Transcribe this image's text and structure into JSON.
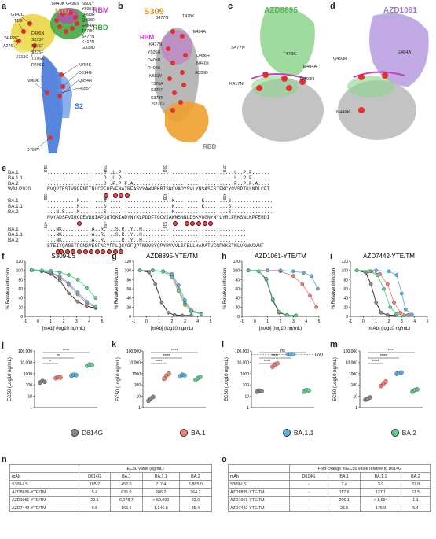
{
  "panels": {
    "a": "a",
    "b": "b",
    "c": "c",
    "d": "d",
    "e": "e",
    "f": "f",
    "g": "g",
    "h": "h",
    "i": "i",
    "j": "j",
    "k": "k",
    "l": "l",
    "m": "m",
    "n": "n",
    "o": "o"
  },
  "structure_labels": {
    "ntd": "NTD",
    "rbm": "RBM",
    "rbd": "RBD",
    "s2": "S2",
    "s309": "S309",
    "azd8895": "AZD8895",
    "azd1061": "AZD1061",
    "rbd_b": "RBD",
    "rbm_b": "RBM"
  },
  "colors": {
    "ntd": "#e8d23a",
    "rbm": "#c040c0",
    "rbd": "#3aa33a",
    "s2": "#3a6fd6",
    "s309": "#f0a030",
    "azd8895": "#8ed58e",
    "azd1061": "#b79be0",
    "d614g": "#888888",
    "ba1": "#f08070",
    "ba11": "#5bb5e8",
    "ba2": "#5fcf8f",
    "orange_band": "#f5b04a",
    "purple_band": "#a486d6",
    "green_band": "#66cc88"
  },
  "mutations_a": [
    "N440K",
    "G496S",
    "N501Y",
    "Y505H",
    "Q498R",
    "Q493R",
    "E484A",
    "T478K",
    "S477N",
    "K417N",
    "G339D",
    "N764K",
    "D614G",
    "Q954H",
    "H655Y",
    "N969K",
    "D796Y",
    "G142D",
    "T19I",
    "L24-P26˜",
    "A27S",
    "V213G",
    "D405N",
    "S373P",
    "S371F",
    "S375F",
    "T376A",
    "R408S"
  ],
  "mutations_b": [
    "T478K",
    "S477N",
    "E484A",
    "K417N",
    "Y505H",
    "Q498R",
    "D405N",
    "N440K",
    "R408S",
    "G339D",
    "N501Y",
    "T376A",
    "S375F",
    "S373P",
    "S371F"
  ],
  "mutations_c": [
    "S477N",
    "T478K",
    "E484A",
    "K417N",
    "Q493R"
  ],
  "mutations_d": [
    "Q493R",
    "E484A",
    "N440K"
  ],
  "sequence": {
    "rows": [
      {
        "numbers": [
          "319",
          "339",
          "359",
          "379"
        ],
        "lines": [
          {
            "name": "BA.1",
            "seq": "...................D..L.P......................................L..P.F......"
          },
          {
            "name": "BA.1.1",
            "seq": "...................D..L.P......................................L..P.F......"
          },
          {
            "name": "BA.2",
            "seq": "...................D..F.P.F.A..................................F..P.F.A...."
          },
          {
            "name": "WA1/2020",
            "seq": "RVQPTESIVRFPNITNLCPFGEVFNATRFASVYAWNRKRISNCVADYSVLYNSASFSTFKCYGVSPTKLNDLCFT"
          }
        ]
      },
      {
        "numbers": [
          "399",
          "419",
          "439",
          "459"
        ],
        "lines": [
          {
            "name": "BA.1",
            "seq": "..........N........S......................K.........K........S.............."
          },
          {
            "name": "BA.1.1",
            "seq": "..........N........S......................K.........K........S.............."
          },
          {
            "name": "BA.2",
            "seq": "...N.S....N........S......................K..................S.............."
          },
          {
            "name": "",
            "seq": "NVYADSFVIRGDEVRQIAPGQTGKIADYNYKLPDDFTGCVIAWNSNNLDSKVGGNYNYLYRLFRKSNLKPFERDI"
          }
        ]
      },
      {
        "numbers": [
          "479",
          "499",
          "519"
        ],
        "lines": [
          {
            "name": "BA.1",
            "seq": "...NK..........A..R....S.R..Y..H..................................."
          },
          {
            "name": "BA.1.1",
            "seq": "...NK..........A..R....S.R..Y..H..................................."
          },
          {
            "name": "BA.2",
            "seq": "...NK..........A..R......R..Y..H..................................."
          },
          {
            "name": "",
            "seq": "STEIYQAGSTPCNGVEGFNCYFPLQSYGFQPTNGVGYQPYRVVVLSFELLHAPATVCGPKKSTNLVKNKCVNF"
          }
        ]
      }
    ]
  },
  "chart_data": [
    {
      "id": "f",
      "type": "line",
      "title": "S309-LS",
      "xlabel": "[mAb] (log10 ng/mL)",
      "ylabel": "% Relative infection",
      "xlim": [
        -1,
        5
      ],
      "ylim": [
        0,
        120
      ],
      "xticks": [
        "-1",
        "0",
        "1",
        "2",
        "3",
        "4",
        "5"
      ],
      "yticks": [
        "0",
        "20",
        "40",
        "60",
        "80",
        "100",
        "120"
      ],
      "series": [
        {
          "name": "D614G",
          "color": "#888888",
          "x": [
            -0.5,
            0.3,
            1,
            1.7,
            2.4,
            3.1,
            3.8,
            4.5
          ],
          "y": [
            100,
            98,
            92,
            78,
            50,
            32,
            22,
            18
          ]
        },
        {
          "name": "BA.1",
          "color": "#f08070",
          "x": [
            -0.5,
            0.3,
            1,
            1.7,
            2.4,
            3.1,
            3.8,
            4.5
          ],
          "y": [
            102,
            98,
            95,
            85,
            68,
            48,
            28,
            20
          ]
        },
        {
          "name": "BA.1.1",
          "color": "#5bb5e8",
          "x": [
            -0.5,
            0.3,
            1,
            1.7,
            2.4,
            3.1,
            3.8,
            4.5
          ],
          "y": [
            100,
            99,
            96,
            88,
            72,
            52,
            32,
            22
          ]
        },
        {
          "name": "BA.2",
          "color": "#5fcf8f",
          "x": [
            -0.5,
            0.3,
            1,
            1.7,
            2.4,
            3.1,
            3.8,
            4.5
          ],
          "y": [
            102,
            100,
            99,
            96,
            90,
            80,
            62,
            40
          ]
        }
      ]
    },
    {
      "id": "g",
      "type": "line",
      "title": "AZD8895-YTE/TM",
      "xlabel": "[mAb] (log10 ng/mL)",
      "ylabel": "% Relative infection",
      "xlim": [
        -1,
        5
      ],
      "ylim": [
        0,
        120
      ],
      "xticks": [
        "-1",
        "0",
        "1",
        "2",
        "3",
        "4",
        "5"
      ],
      "yticks": [
        "0",
        "20",
        "40",
        "60",
        "80",
        "100",
        "120"
      ],
      "series": [
        {
          "name": "D614G",
          "color": "#888888",
          "x": [
            -0.5,
            0.2,
            0.7,
            1.2,
            1.7,
            2.2,
            2.8,
            3.5
          ],
          "y": [
            100,
            96,
            70,
            30,
            8,
            3,
            2,
            2
          ]
        },
        {
          "name": "BA.1",
          "color": "#f08070",
          "x": [
            -0.5,
            0.5,
            1.3,
            2,
            2.5,
            3,
            3.5,
            4.3
          ],
          "y": [
            100,
            100,
            98,
            90,
            60,
            30,
            12,
            5
          ]
        },
        {
          "name": "BA.1.1",
          "color": "#5bb5e8",
          "x": [
            -0.5,
            0.5,
            1.3,
            2,
            2.5,
            3,
            3.5,
            4.3
          ],
          "y": [
            100,
            100,
            98,
            92,
            68,
            35,
            14,
            6
          ]
        },
        {
          "name": "BA.2",
          "color": "#5fcf8f",
          "x": [
            -0.5,
            0.5,
            1.3,
            2,
            2.5,
            3,
            3.5,
            4.3
          ],
          "y": [
            100,
            100,
            97,
            85,
            55,
            25,
            10,
            5
          ]
        }
      ]
    },
    {
      "id": "h",
      "type": "line",
      "title": "AZD1061-YTE/TM",
      "xlabel": "[mAb] (log10 ng/mL)",
      "ylabel": "% Relative infection",
      "xlim": [
        -1,
        5
      ],
      "ylim": [
        0,
        120
      ],
      "xticks": [
        "-1",
        "0",
        "1",
        "2",
        "3",
        "4",
        "5"
      ],
      "yticks": [
        "0",
        "20",
        "40",
        "60",
        "80",
        "100",
        "120"
      ],
      "series": [
        {
          "name": "D614G",
          "color": "#888888",
          "x": [
            -0.5,
            0.3,
            0.9,
            1.4,
            1.9,
            2.5,
            3.2
          ],
          "y": [
            100,
            98,
            80,
            35,
            8,
            3,
            2
          ]
        },
        {
          "name": "BA.1",
          "color": "#f08070",
          "x": [
            -0.5,
            1,
            2,
            3,
            3.7,
            4.3,
            4.8
          ],
          "y": [
            100,
            100,
            98,
            88,
            70,
            45,
            20
          ]
        },
        {
          "name": "BA.1.1",
          "color": "#5bb5e8",
          "x": [
            -0.5,
            1,
            2,
            3,
            3.8,
            4.4,
            4.9
          ],
          "y": [
            100,
            100,
            100,
            98,
            95,
            88,
            60
          ]
        },
        {
          "name": "BA.2",
          "color": "#5fcf8f",
          "x": [
            -0.5,
            0.3,
            0.9,
            1.4,
            1.9,
            2.5,
            3.2
          ],
          "y": [
            100,
            98,
            82,
            38,
            10,
            3,
            2
          ]
        }
      ]
    },
    {
      "id": "i",
      "type": "line",
      "title": "AZD7442-YTE/TM",
      "xlabel": "[mAb] (log10 ng/mL)",
      "ylabel": "% Relative infection",
      "xlim": [
        -1,
        5
      ],
      "ylim": [
        0,
        120
      ],
      "xticks": [
        "-1",
        "0",
        "1",
        "2",
        "3",
        "4",
        "5"
      ],
      "yticks": [
        "0",
        "20",
        "40",
        "60",
        "80",
        "100",
        "120"
      ],
      "series": [
        {
          "name": "D614G",
          "color": "#888888",
          "x": [
            -0.5,
            0.2,
            0.6,
            1,
            1.4,
            1.9,
            2.5
          ],
          "y": [
            100,
            95,
            70,
            30,
            8,
            3,
            2
          ]
        },
        {
          "name": "BA.1",
          "color": "#f08070",
          "x": [
            -0.5,
            0.6,
            1.3,
            1.9,
            2.4,
            2.9,
            3.5
          ],
          "y": [
            100,
            98,
            92,
            70,
            30,
            8,
            3
          ]
        },
        {
          "name": "BA.1.1",
          "color": "#5bb5e8",
          "x": [
            -0.5,
            1,
            2,
            2.6,
            3,
            3.3,
            3.8
          ],
          "y": [
            100,
            100,
            98,
            90,
            50,
            15,
            4
          ]
        },
        {
          "name": "BA.2",
          "color": "#5fcf8f",
          "x": [
            -0.5,
            0.5,
            1.1,
            1.6,
            2.1,
            2.6,
            3.2
          ],
          "y": [
            100,
            98,
            90,
            60,
            20,
            5,
            2
          ]
        }
      ]
    },
    {
      "id": "j",
      "type": "scatter",
      "ylabel": "EC50 (Log10 ng/mL)",
      "yticks": [
        "1",
        "10",
        "100",
        "1000",
        "10,000",
        "100,000"
      ],
      "ylim_log": [
        0,
        5
      ],
      "categories": [
        "D614G",
        "BA.1",
        "BA.1.1",
        "BA.2"
      ],
      "values": [
        [
          2.2,
          2.35,
          2.27
        ],
        [
          2.6,
          2.68,
          2.65
        ],
        [
          2.82,
          2.9,
          2.87
        ],
        [
          3.7,
          3.8,
          3.76
        ]
      ],
      "significance": [
        {
          "from": 0,
          "to": 1,
          "label": "*"
        },
        {
          "from": 0,
          "to": 2,
          "label": "**"
        },
        {
          "from": 0,
          "to": 3,
          "label": "****"
        }
      ]
    },
    {
      "id": "k",
      "type": "scatter",
      "ylabel": "EC50 (Log10 ng/mL)",
      "yticks": [
        "1",
        "10",
        "100",
        "1000",
        "10,000",
        "100,000"
      ],
      "ylim_log": [
        0,
        5
      ],
      "categories": [
        "D614G",
        "BA.1",
        "BA.1.1",
        "BA.2"
      ],
      "values": [
        [
          0.6,
          0.8,
          0.95
        ],
        [
          2.55,
          2.85,
          3.0
        ],
        [
          2.75,
          2.9,
          2.85
        ],
        [
          2.45,
          2.6,
          2.7
        ]
      ],
      "significance": [
        {
          "from": 0,
          "to": 1,
          "label": "****"
        },
        {
          "from": 0,
          "to": 2,
          "label": "****"
        },
        {
          "from": 0,
          "to": 3,
          "label": "****"
        }
      ]
    },
    {
      "id": "l",
      "type": "scatter",
      "ylabel": "EC50 (Log10 ng/mL)",
      "yticks": [
        "1",
        "10",
        "100",
        "1000",
        "10,000",
        "100,000"
      ],
      "ylim_log": [
        0,
        5
      ],
      "categories": [
        "D614G",
        "BA.1",
        "BA.1.1",
        "BA.2"
      ],
      "values": [
        [
          1.4,
          1.5,
          1.45
        ],
        [
          3.6,
          3.8,
          3.9
        ],
        [
          4.7,
          4.7,
          4.7
        ],
        [
          1.4,
          1.55,
          1.5
        ]
      ],
      "lod_label": "LoD",
      "significance": [
        {
          "from": 0,
          "to": 1,
          "label": "****"
        },
        {
          "from": 0,
          "to": 2,
          "label": "****"
        },
        {
          "from": 0,
          "to": 3,
          "label": "ns"
        }
      ]
    },
    {
      "id": "m",
      "type": "scatter",
      "ylabel": "EC50 (Log10 ng/mL)",
      "yticks": [
        "1",
        "10",
        "100",
        "1000",
        "10,000",
        "100,000"
      ],
      "ylim_log": [
        0,
        5
      ],
      "categories": [
        "D614G",
        "BA.1",
        "BA.1.1",
        "BA.2"
      ],
      "values": [
        [
          0.7,
          0.8,
          0.9
        ],
        [
          1.9,
          2.1,
          2.3
        ],
        [
          3.0,
          3.05,
          3.1
        ],
        [
          1.4,
          1.55,
          1.6
        ]
      ],
      "significance": [
        {
          "from": 0,
          "to": 1,
          "label": "****"
        },
        {
          "from": 0,
          "to": 2,
          "label": "****"
        },
        {
          "from": 0,
          "to": 3,
          "label": "****"
        }
      ]
    }
  ],
  "legend": [
    {
      "label": "D614G",
      "color": "#888888"
    },
    {
      "label": "BA.1",
      "color": "#f08070"
    },
    {
      "label": "BA.1.1",
      "color": "#5bb5e8"
    },
    {
      "label": "BA.2",
      "color": "#5fcf8f"
    }
  ],
  "table_n": {
    "caption": "EC50 value (ng/mL)",
    "headers": [
      "mAb",
      "D614G",
      "BA.1",
      "BA.1.1",
      "BA.2"
    ],
    "rows": [
      [
        "S309-LS",
        "185.2",
        "452.0",
        "717.4",
        "5,885.0"
      ],
      [
        "AZD8895-YTE/TM",
        "5.4",
        "635.0",
        "686.2",
        "364.7"
      ],
      [
        "AZD1061-YTE/TM",
        "29.5",
        "6,078.7",
        "> 50,000",
        "32.0"
      ],
      [
        "AZD7442-YTE/TM",
        "6.5",
        "166.6",
        "1,146.8",
        "35.4"
      ]
    ]
  },
  "table_o": {
    "caption": "Fold-change in EC50 value relative to D614G",
    "headers": [
      "mAb",
      "D614G",
      "BA.1",
      "BA.1.1",
      "BA.2"
    ],
    "rows": [
      [
        "S309-LS",
        "-",
        "2.4",
        "3.9",
        "31.8"
      ],
      [
        "AZD8895-YTE/TM",
        "-",
        "117.6",
        "127.1",
        "67.5"
      ],
      [
        "AZD1061-YTE/TM",
        "-",
        "206.1",
        "> 1,694",
        "1.1"
      ],
      [
        "AZD7442-YTE/TM",
        "-",
        "25.5",
        "175.9",
        "5.4"
      ]
    ]
  }
}
